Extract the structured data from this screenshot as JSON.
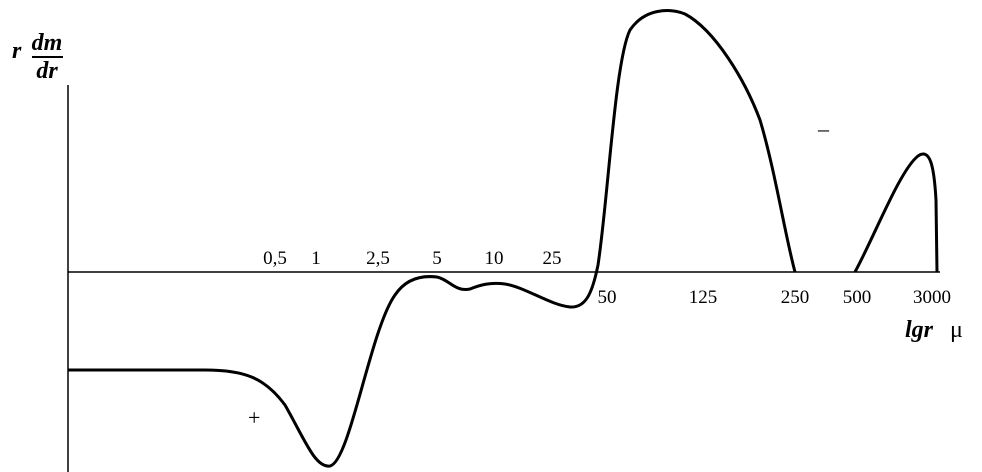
{
  "y_label": {
    "prefix": "r",
    "numerator": "dm",
    "denominator": "dr"
  },
  "x_label": {
    "main": "lgr",
    "unit": "μ"
  },
  "ticks_above": [
    "0,5",
    "1",
    "2,5",
    "5",
    "10",
    "25"
  ],
  "ticks_below": [
    "50",
    "125",
    "250",
    "500",
    "3000"
  ],
  "annotations": {
    "plus": "+",
    "minus": "–"
  }
}
